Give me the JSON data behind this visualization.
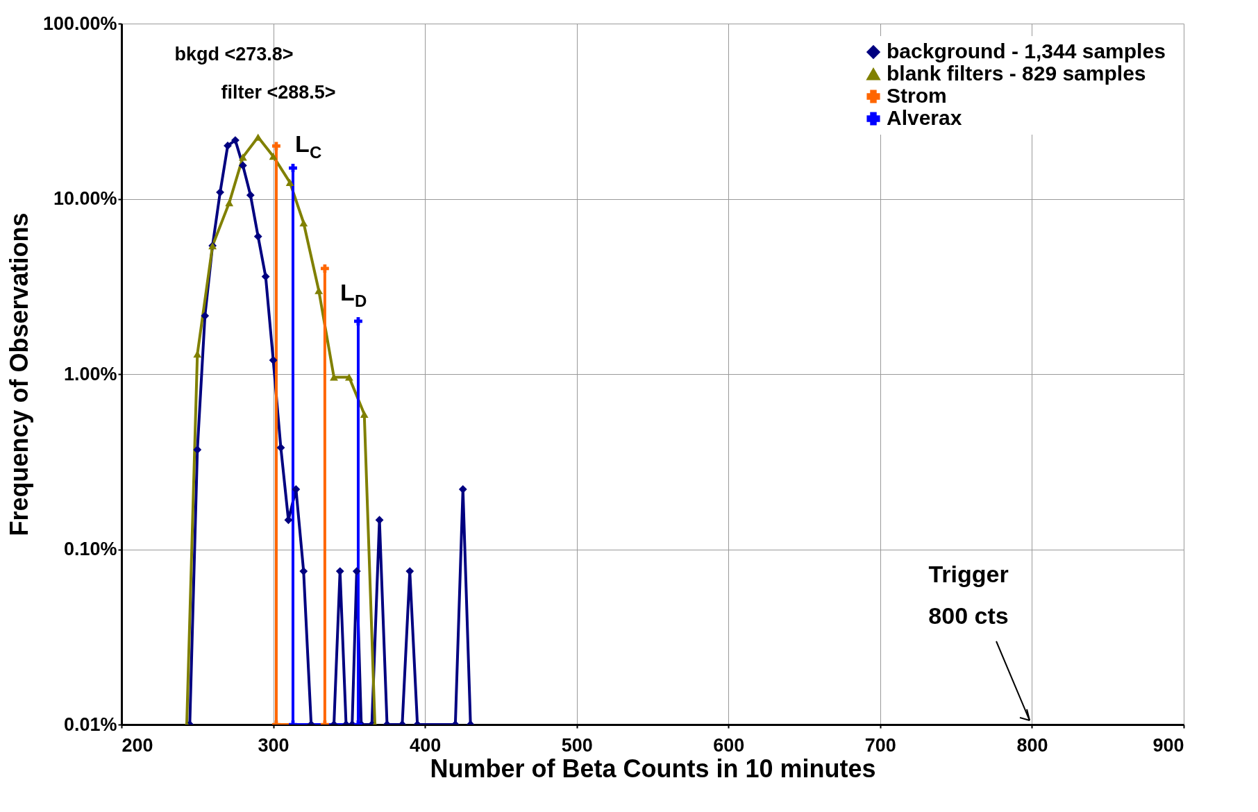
{
  "chart_data": {
    "type": "line",
    "xlabel": "Number of Beta Counts in 10 minutes",
    "ylabel": "Frequency of Observations",
    "log": "y",
    "xlim": [
      200,
      900
    ],
    "xticks": [
      200,
      300,
      400,
      500,
      600,
      700,
      800,
      900
    ],
    "ylim": [
      0.01,
      100
    ],
    "yticks": [
      {
        "value": 0.01,
        "label": "0.01%"
      },
      {
        "value": 0.1,
        "label": "0.10%"
      },
      {
        "value": 1,
        "label": "1.00%"
      },
      {
        "value": 10,
        "label": "10.00%"
      },
      {
        "value": 100,
        "label": "100.00%"
      }
    ],
    "grid": true,
    "legend": "top right",
    "line_style": "solid",
    "series": [
      {
        "name": "background - 1,344 samples",
        "color": "#000080",
        "marker": "diamond",
        "x": [
          245,
          250,
          255,
          260,
          265,
          270,
          275,
          280,
          285,
          290,
          295,
          300,
          305,
          310,
          315,
          320,
          325,
          340,
          344,
          348,
          352,
          355,
          358,
          365,
          370,
          375,
          385,
          390,
          395,
          420,
          425,
          430
        ],
        "values": [
          0.01,
          0.37,
          2.15,
          5.4,
          10.9,
          20.1,
          21.6,
          15.5,
          10.5,
          6.1,
          3.6,
          1.2,
          0.38,
          0.147,
          0.22,
          0.075,
          0.01,
          0.01,
          0.075,
          0.01,
          0.01,
          0.075,
          0.01,
          0.01,
          0.147,
          0.01,
          0.01,
          0.075,
          0.01,
          0.01,
          0.22,
          0.01
        ]
      },
      {
        "name": "blank filters - 829 samples",
        "color": "#808000",
        "marker": "triangle",
        "x": [
          243,
          250,
          260,
          271,
          280,
          290,
          300,
          311,
          320,
          330,
          340,
          350,
          360,
          367
        ],
        "values": [
          0.01,
          1.3,
          5.4,
          9.5,
          17.3,
          22.5,
          17.5,
          12.4,
          7.3,
          3.0,
          0.96,
          0.96,
          0.59,
          0.01
        ]
      },
      {
        "name": "Strom",
        "color": "#ff6600",
        "marker": "cross",
        "x": [
          302,
          302,
          334,
          334
        ],
        "values": [
          20,
          0.01,
          0.01,
          4
        ]
      },
      {
        "name": "Alverax",
        "color": "#0000ff",
        "marker": "cross",
        "x": [
          313,
          313,
          356,
          356
        ],
        "values": [
          15,
          0.01,
          0.01,
          2
        ]
      }
    ],
    "annotations": [
      "bkgd <273.8>",
      "filter <288.5>",
      "L$_{C}$",
      "L$_{D}$",
      "Trigger 800 cts"
    ]
  }
}
